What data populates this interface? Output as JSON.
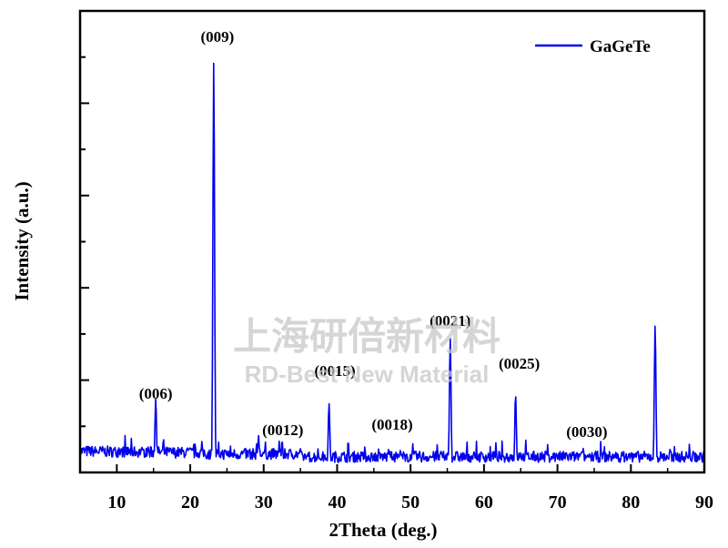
{
  "chart_data": {
    "type": "line",
    "xlabel": "2Theta (deg.)",
    "ylabel": "Intensity (a.u.)",
    "xlim": [
      5,
      90
    ],
    "ylim": [
      0,
      100
    ],
    "xticks": [
      10,
      20,
      30,
      40,
      50,
      60,
      70,
      80,
      90
    ],
    "legend": {
      "position": "top-right",
      "entries": [
        "GaGeTe"
      ]
    },
    "grid": false,
    "series": [
      {
        "name": "GaGeTe",
        "color": "#0000ee",
        "peaks": [
          {
            "x": 15.3,
            "y": 16
          },
          {
            "x": 23.2,
            "y": 89
          },
          {
            "x": 29.3,
            "y": 8
          },
          {
            "x": 32.5,
            "y": 7
          },
          {
            "x": 38.9,
            "y": 15
          },
          {
            "x": 47.0,
            "y": 5
          },
          {
            "x": 55.4,
            "y": 29
          },
          {
            "x": 64.3,
            "y": 17
          },
          {
            "x": 73.5,
            "y": 4
          },
          {
            "x": 83.3,
            "y": 32
          }
        ]
      }
    ],
    "annotations": [
      {
        "text": "(006)",
        "x": 15.3
      },
      {
        "text": "(009)",
        "x": 23.7
      },
      {
        "text": "(0012)",
        "x": 32.6
      },
      {
        "text": "(0015)",
        "x": 39.7
      },
      {
        "text": "(0018)",
        "x": 47.5
      },
      {
        "text": "(0021)",
        "x": 55.4
      },
      {
        "text": "(0025)",
        "x": 64.8
      },
      {
        "text": "(0030)",
        "x": 74.0
      }
    ]
  },
  "watermark": {
    "line1": "上海研倍新材料",
    "line2": "RD-Best New Material"
  }
}
